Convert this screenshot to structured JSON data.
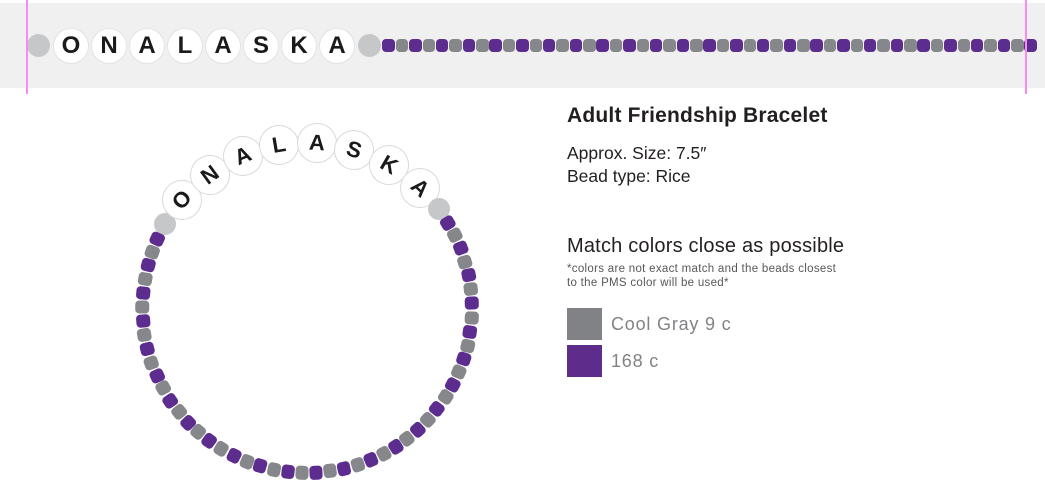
{
  "bracelet": {
    "word": "ONALASKA",
    "letters": [
      "O",
      "N",
      "A",
      "L",
      "A",
      "S",
      "K",
      "A"
    ],
    "rice_bead_count": 49,
    "rice_pattern": [
      "purple",
      "gray"
    ]
  },
  "colors": {
    "purple": "#5d2c8f",
    "gray": "#85878a",
    "spacer": "#c5c7c9",
    "letter_bead_bg": "#ffffff",
    "letter_text": "#1a1a1a",
    "strip_bg": "#f0f0f1",
    "guide_pink": "#f78bf0",
    "swatch_gray": "#808285",
    "swatch_purple": "#5e2d8c"
  },
  "panel": {
    "title": "Adult Friendship Bracelet",
    "size_line": "Approx. Size: 7.5″",
    "bead_type_line": "Bead type: Rice",
    "match_heading": "Match colors close as possible",
    "disclaimer_line1": "*colors are not exact match and the beads closest",
    "disclaimer_line2": "to the PMS color will be used*",
    "swatches": [
      {
        "label": "Cool Gray 9 c",
        "color_key": "swatch_gray"
      },
      {
        "label": "168 c",
        "color_key": "swatch_purple"
      }
    ]
  }
}
